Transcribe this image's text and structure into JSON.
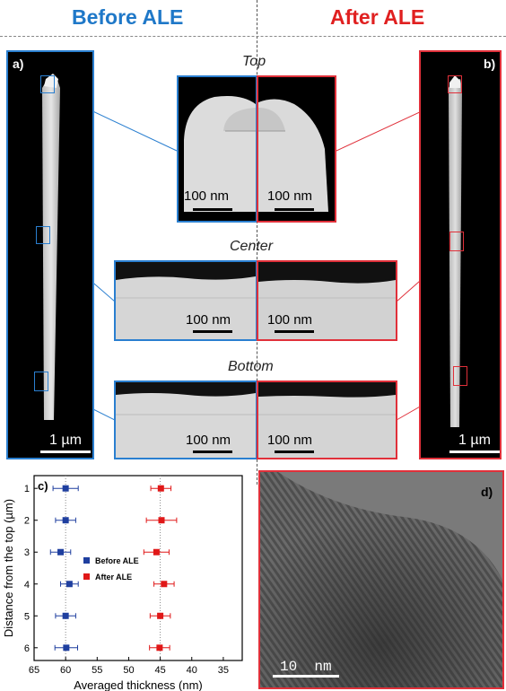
{
  "headers": {
    "before": "Before ALE",
    "after": "After ALE"
  },
  "panel_a": {
    "label": "a)",
    "scale": "1 µm"
  },
  "panel_b": {
    "label": "b)",
    "scale": "1 µm"
  },
  "sections": {
    "top": "Top",
    "center": "Center",
    "bottom": "Bottom"
  },
  "inset_scale": "100 nm",
  "panel_c": {
    "label": "c)"
  },
  "panel_d": {
    "label": "d)",
    "scale": "10  nm"
  },
  "colors": {
    "before": "#1f3f9f",
    "after": "#e01818",
    "frame_blue": "#2a7fd0",
    "frame_red": "#e0303a"
  },
  "chart_data": {
    "type": "scatter",
    "title": "",
    "xlabel": "Averaged thickness (nm)",
    "ylabel": "Distance from the top (µm)",
    "xlim": [
      65,
      32
    ],
    "ylim": [
      6.4,
      0.6
    ],
    "xticks": [
      "65",
      "60",
      "55",
      "50",
      "45",
      "40",
      "35"
    ],
    "yticks": [
      "1",
      "2",
      "3",
      "4",
      "5",
      "6"
    ],
    "grid": false,
    "legend": "center-left",
    "series": [
      {
        "name": "Before ALE",
        "color": "#1f3f9f",
        "x": [
          60.0,
          60.0,
          60.8,
          59.4,
          60.0,
          59.9
        ],
        "y": [
          1,
          2,
          3,
          4,
          5,
          6
        ],
        "xerr": [
          2.0,
          1.6,
          1.6,
          1.4,
          1.6,
          1.8
        ]
      },
      {
        "name": "After ALE",
        "color": "#e01818",
        "x": [
          44.9,
          44.8,
          45.6,
          44.4,
          45.0,
          45.1
        ],
        "y": [
          1,
          2,
          3,
          4,
          5,
          6
        ],
        "xerr": [
          1.6,
          2.4,
          2.0,
          1.6,
          1.6,
          1.6
        ]
      }
    ]
  }
}
